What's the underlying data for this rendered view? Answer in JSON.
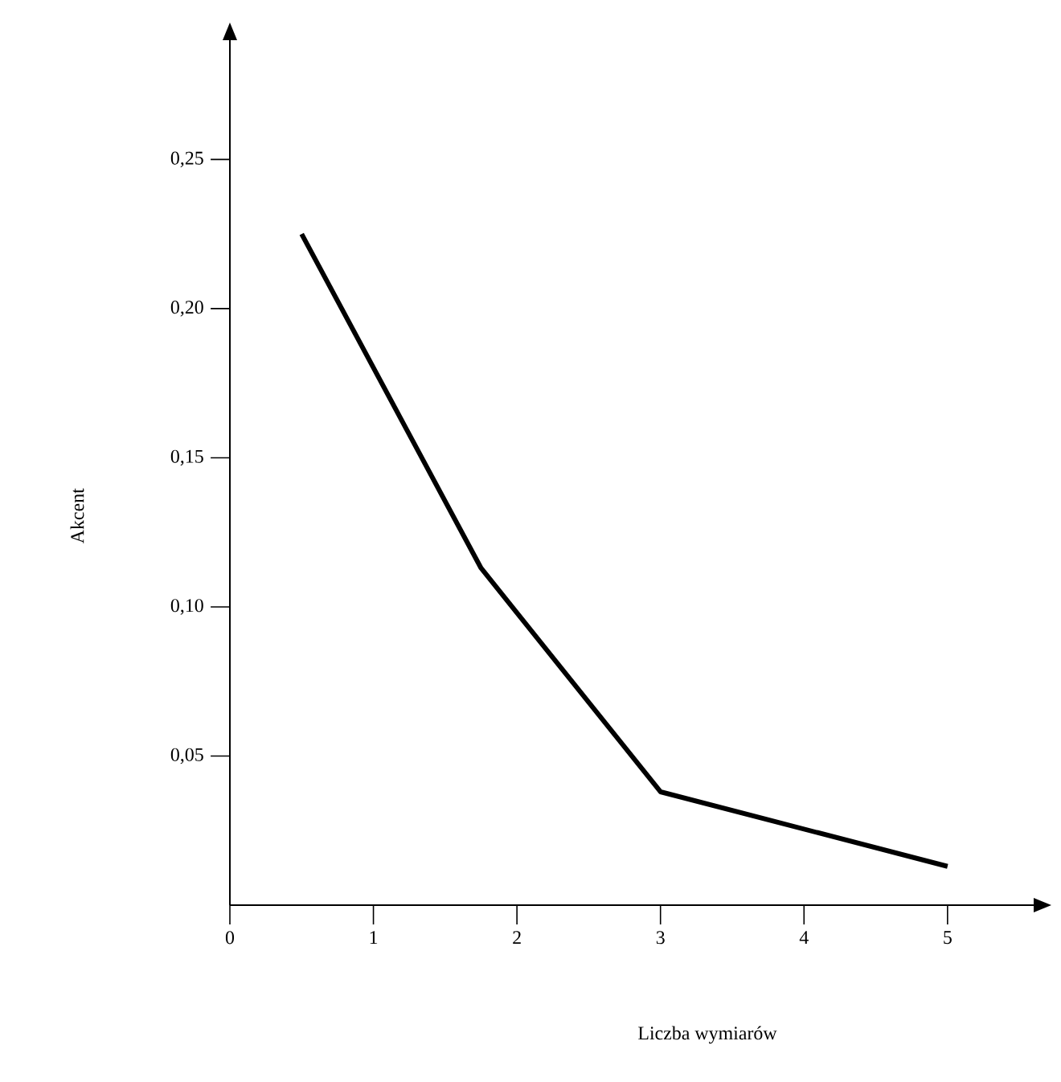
{
  "chart_data": {
    "type": "line",
    "xlabel": "Liczba wymiarów",
    "ylabel": "Akcent",
    "x": [
      0.5,
      1.75,
      3,
      5
    ],
    "values": [
      0.225,
      0.113,
      0.038,
      0.013
    ],
    "color": "#000000",
    "xlim": [
      0,
      5.6
    ],
    "ylim": [
      0,
      0.29
    ],
    "xticks": [
      0,
      1,
      2,
      3,
      4,
      5
    ],
    "yticks": [
      {
        "value": 0.05,
        "label": "0,05"
      },
      {
        "value": 0.1,
        "label": "0,10"
      },
      {
        "value": 0.15,
        "label": "0,15"
      },
      {
        "value": 0.2,
        "label": "0,20"
      },
      {
        "value": 0.25,
        "label": "0,25"
      }
    ],
    "grid": false,
    "marker": "none",
    "line_style": "solid"
  }
}
